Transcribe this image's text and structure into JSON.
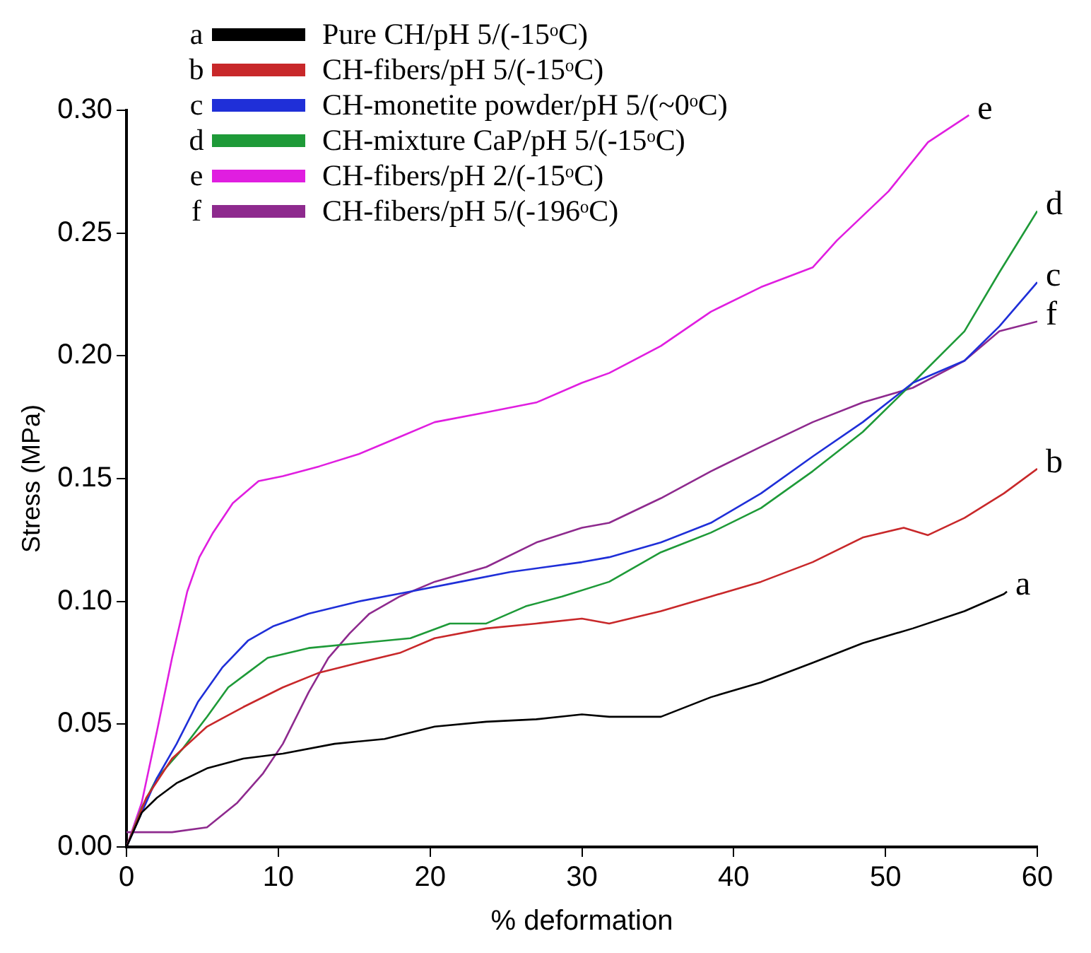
{
  "chart_data": {
    "type": "line",
    "xlabel": "% deformation",
    "ylabel": "Stress (MPa)",
    "xlim": [
      0,
      60
    ],
    "xticks": [
      0,
      10,
      20,
      30,
      40,
      50,
      60
    ],
    "ylim": [
      0,
      0.3
    ],
    "yticks": [
      {
        "value": 0,
        "label": "0.00"
      },
      0.05,
      {
        "value": 0.1,
        "label": "0.10"
      },
      0.15,
      {
        "value": 0.2,
        "label": "0.20"
      },
      0.25,
      {
        "value": 0.3,
        "label": "0.30"
      }
    ],
    "grid": false,
    "legend": "top left",
    "marker": "none",
    "line_style": "solid",
    "series": [
      {
        "name": "Pure CH/pH 5/(-15ᵒC)",
        "color": "#000000",
        "x": [
          0,
          1,
          2,
          3.3,
          5.3,
          7.7,
          10.3,
          13.7,
          17,
          20.3,
          23.7,
          27,
          30,
          31.8,
          35.2,
          38.5,
          41.8,
          45.2,
          48.5,
          51.8,
          55.2,
          57.8,
          58
        ],
        "values": [
          0,
          0.014,
          0.02,
          0.026,
          0.032,
          0.036,
          0.038,
          0.042,
          0.044,
          0.049,
          0.051,
          0.052,
          0.054,
          0.053,
          0.053,
          0.061,
          0.067,
          0.075,
          0.083,
          0.089,
          0.096,
          0.103,
          0.104
        ]
      },
      {
        "name": "CH-fibers/pH 5/(-15ᵒC)",
        "color": "#c8282a",
        "x": [
          0,
          1.3,
          3,
          5.3,
          7.7,
          10.3,
          12.7,
          15.3,
          18,
          20.3,
          23.7,
          27,
          30,
          31.8,
          35.2,
          38.5,
          41.8,
          45.2,
          48.5,
          51.2,
          52.8,
          55.2,
          57.8,
          60
        ],
        "values": [
          0,
          0.02,
          0.036,
          0.049,
          0.057,
          0.065,
          0.071,
          0.075,
          0.079,
          0.085,
          0.089,
          0.091,
          0.093,
          0.091,
          0.096,
          0.102,
          0.108,
          0.116,
          0.126,
          0.13,
          0.127,
          0.134,
          0.144,
          0.154
        ]
      },
      {
        "name": "CH-monetite powder/pH 5/(~0ᵒC)",
        "color": "#1f2fd8",
        "x": [
          0,
          1,
          2,
          3.3,
          4.7,
          6.3,
          8,
          9.7,
          12,
          15.3,
          18.7,
          22,
          25.3,
          30,
          31.8,
          35.2,
          38.5,
          41.8,
          45.2,
          48.5,
          51.8,
          55.2,
          57.5,
          60
        ],
        "values": [
          0,
          0.014,
          0.028,
          0.042,
          0.059,
          0.073,
          0.084,
          0.09,
          0.095,
          0.1,
          0.104,
          0.108,
          0.112,
          0.116,
          0.118,
          0.124,
          0.132,
          0.144,
          0.159,
          0.173,
          0.189,
          0.198,
          0.212,
          0.23
        ]
      },
      {
        "name": "CH-mixture CaP/pH 5/(-15ᵒC)",
        "color": "#1e9a38",
        "x": [
          0,
          1,
          2,
          3.7,
          5.3,
          6.7,
          8,
          9.3,
          12,
          15.3,
          18.7,
          21.3,
          23.7,
          26.3,
          28.7,
          31.8,
          35.2,
          38.5,
          41.8,
          45.2,
          48.5,
          51.8,
          55.2,
          57.5,
          60
        ],
        "values": [
          0,
          0.016,
          0.028,
          0.04,
          0.053,
          0.065,
          0.071,
          0.077,
          0.081,
          0.083,
          0.085,
          0.091,
          0.091,
          0.098,
          0.102,
          0.108,
          0.12,
          0.128,
          0.138,
          0.153,
          0.169,
          0.189,
          0.21,
          0.234,
          0.259
        ]
      },
      {
        "name": "CH-fibers/pH 2/(-15ᵒC)",
        "color": "#e01ee0",
        "x": [
          0,
          1,
          2,
          3,
          4,
          4.8,
          5.7,
          7,
          8.7,
          10.3,
          12.7,
          15.3,
          18,
          20.3,
          23.7,
          27,
          30,
          31.8,
          35.2,
          38.5,
          41.8,
          45.2,
          46.8,
          50.2,
          52.8,
          55.5
        ],
        "values": [
          0,
          0.018,
          0.047,
          0.077,
          0.104,
          0.118,
          0.128,
          0.14,
          0.149,
          0.151,
          0.155,
          0.16,
          0.167,
          0.173,
          0.177,
          0.181,
          0.189,
          0.193,
          0.204,
          0.218,
          0.228,
          0.236,
          0.247,
          0.267,
          0.287,
          0.298
        ]
      },
      {
        "name": "CH-fibers/pH 5/(-196ᵒC)",
        "color": "#8e2a8e",
        "x": [
          0,
          3,
          5.3,
          7.3,
          9,
          10.3,
          12,
          13.3,
          14.7,
          16,
          18,
          20.3,
          23.7,
          27,
          30,
          31.8,
          35.2,
          38.5,
          41.8,
          45.2,
          48.5,
          51.8,
          55.2,
          57.5,
          60
        ],
        "values": [
          0.006,
          0.006,
          0.008,
          0.018,
          0.03,
          0.042,
          0.063,
          0.077,
          0.087,
          0.095,
          0.102,
          0.108,
          0.114,
          0.124,
          0.13,
          0.132,
          0.142,
          0.153,
          0.163,
          0.173,
          0.181,
          0.187,
          0.198,
          0.21,
          0.214
        ]
      }
    ],
    "annotations": [
      {
        "text": "a",
        "x": 58,
        "y": 0.104
      },
      {
        "text": "b",
        "x": 60,
        "y": 0.154
      },
      {
        "text": "c",
        "x": 60,
        "y": 0.23
      },
      {
        "text": "d",
        "x": 60,
        "y": 0.259
      },
      {
        "text": "e",
        "x": 55.5,
        "y": 0.298
      },
      {
        "text": "f",
        "x": 60,
        "y": 0.214
      }
    ]
  }
}
